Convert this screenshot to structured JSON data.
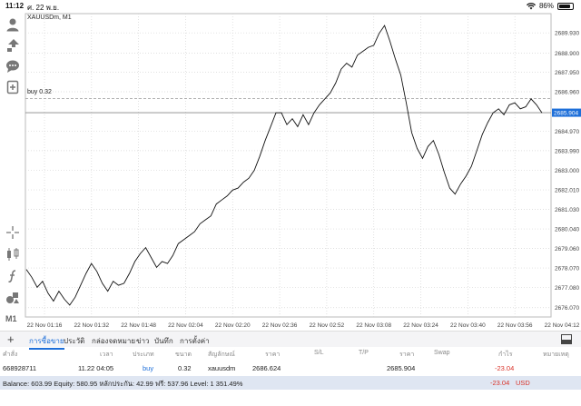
{
  "status": {
    "time": "11:12",
    "date": "ศ. 22 พ.ย.",
    "battery": "86%"
  },
  "chart": {
    "symbol": "XAUUSDm, M1",
    "order_line_label": "buy 0.32",
    "order_price": 2686.624,
    "current_price_label": "2685.904",
    "current_price": 2685.904,
    "grid_color": "#d5d5d5",
    "price_color": "#1e6fd9",
    "timeframe": "M1"
  },
  "chart_data": {
    "type": "line",
    "y_axis_ticks": [
      "2689.930",
      "2688.900",
      "2687.950",
      "2686.960",
      "2685.904",
      "2684.970",
      "2683.990",
      "2683.000",
      "2682.010",
      "2681.030",
      "2680.040",
      "2679.060",
      "2678.070",
      "2677.080",
      "2676.070"
    ],
    "x_axis_ticks": [
      "22 Nov 01:16",
      "22 Nov 01:32",
      "22 Nov 01:48",
      "22 Nov 02:04",
      "22 Nov 02:20",
      "22 Nov 02:36",
      "22 Nov 02:52",
      "22 Nov 03:08",
      "22 Nov 03:24",
      "22 Nov 03:40",
      "22 Nov 03:56",
      "22 Nov 04:12"
    ],
    "ylim": [
      2675.6,
      2690.9
    ],
    "values": [
      2678.0,
      2677.6,
      2677.1,
      2677.4,
      2676.8,
      2676.4,
      2676.9,
      2676.5,
      2676.2,
      2676.6,
      2677.2,
      2677.8,
      2678.3,
      2677.9,
      2677.3,
      2676.9,
      2677.4,
      2677.2,
      2677.3,
      2677.8,
      2678.4,
      2678.8,
      2679.1,
      2678.6,
      2678.1,
      2678.4,
      2678.3,
      2678.7,
      2679.3,
      2679.5,
      2679.7,
      2679.9,
      2680.3,
      2680.5,
      2680.7,
      2681.3,
      2681.5,
      2681.7,
      2682.0,
      2682.1,
      2682.4,
      2682.6,
      2683.0,
      2683.7,
      2684.5,
      2685.2,
      2685.9,
      2685.9,
      2685.3,
      2685.6,
      2685.2,
      2685.8,
      2685.3,
      2685.9,
      2686.3,
      2686.6,
      2686.9,
      2687.4,
      2688.1,
      2688.4,
      2688.2,
      2688.8,
      2689.0,
      2689.2,
      2689.3,
      2689.9,
      2690.3,
      2689.5,
      2688.6,
      2687.8,
      2686.4,
      2684.9,
      2684.1,
      2683.6,
      2684.2,
      2684.5,
      2683.8,
      2682.9,
      2682.1,
      2681.8,
      2682.3,
      2682.7,
      2683.2,
      2684.0,
      2684.8,
      2685.4,
      2685.9,
      2686.1,
      2685.8,
      2686.3,
      2686.4,
      2686.1,
      2686.2,
      2686.6,
      2686.3,
      2685.9
    ]
  },
  "toolbar": {
    "items": [
      "user-icon",
      "signal-icon",
      "chat-icon",
      "add-doc-icon",
      "crosshair-icon",
      "indicators-icon",
      "function-icon",
      "objects-icon"
    ],
    "timeframe": "M1"
  },
  "tabs": [
    {
      "label": "การซื้อขาย",
      "active": true
    },
    {
      "label": "ประวัติ",
      "active": false
    },
    {
      "label": "กล่องจดหมาย",
      "active": false
    },
    {
      "label": "ข่าว",
      "active": false
    },
    {
      "label": "บันทึก",
      "active": false
    },
    {
      "label": "การตั้งค่า",
      "active": false
    }
  ],
  "trade_table": {
    "headers": [
      "คำสั่ง",
      "เวลา",
      "ประเภท",
      "ขนาด",
      "สัญลักษณ์",
      "ราคา",
      "S/L",
      "T/P",
      "ราคา",
      "Swap",
      "กำไร",
      "หมายเหตุ"
    ],
    "row": {
      "order": "668928711",
      "time": "11.22 04:05",
      "type": "buy",
      "size": "0.32",
      "symbol": "xauusdm",
      "open_price": "2686.624",
      "current_price": "2685.904",
      "profit": "-23.04"
    }
  },
  "balance_bar": {
    "text": "Balance: 603.99  Equity: 580.95  หลักประกัน: 42.99  ฟรี: 537.96  Level: 1 351.49%",
    "profit": "-23.04",
    "currency": "USD"
  }
}
